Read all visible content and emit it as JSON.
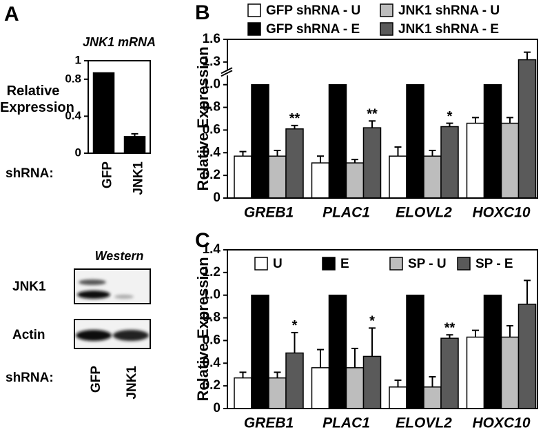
{
  "panels": [
    "A",
    "B",
    "C"
  ],
  "western": {
    "title": "Western",
    "rows": [
      "JNK1",
      "Actin"
    ],
    "x_label": "shRNA:",
    "lanes": [
      "GFP",
      "JNK1"
    ]
  },
  "chart_data": [
    {
      "type": "bar",
      "title": "JNK1 mRNA",
      "y_label": "Relative Expression",
      "x_label": "shRNA:",
      "categories": [
        "GFP",
        "JNK1"
      ],
      "values": [
        0.87,
        0.18
      ],
      "errors": [
        null,
        0.03
      ],
      "color": "#000000",
      "ylim": [
        0,
        1
      ],
      "yticks": [
        0,
        0.4,
        0.8,
        1
      ]
    },
    {
      "type": "grouped-bar",
      "y_label": "Relative Expression",
      "categories": [
        "GREB1",
        "PLAC1",
        "ELOVL2",
        "HOXC10"
      ],
      "series": [
        {
          "name": "GFP shRNA - U",
          "color": "#ffffff",
          "values": [
            0.37,
            0.31,
            0.37,
            0.66
          ],
          "errors": [
            0.04,
            0.06,
            0.08,
            0.05
          ],
          "significance": [
            null,
            null,
            null,
            null
          ]
        },
        {
          "name": "GFP shRNA - E",
          "color": "#000000",
          "values": [
            1.0,
            1.0,
            1.0,
            1.0
          ],
          "errors": [
            null,
            null,
            null,
            null
          ],
          "significance": [
            null,
            null,
            null,
            null
          ]
        },
        {
          "name": "JNK1 shRNA - U",
          "color": "#bdbdbd",
          "values": [
            0.37,
            0.31,
            0.37,
            0.66
          ],
          "errors": [
            0.05,
            0.03,
            0.05,
            0.05
          ],
          "significance": [
            null,
            null,
            null,
            null
          ]
        },
        {
          "name": "JNK1 shRNA - E",
          "color": "#5a5a5a",
          "values": [
            0.61,
            0.62,
            0.63,
            1.33
          ],
          "errors": [
            0.03,
            0.06,
            0.03,
            0.1
          ],
          "significance": [
            "**",
            "**",
            "*",
            null
          ]
        }
      ],
      "ylim": [
        0,
        1.6
      ],
      "yticks": [
        0,
        0.2,
        0.4,
        0.6,
        0.8,
        {
          "value": 1,
          "label": "1.0"
        },
        1.3,
        1.6
      ],
      "axis_break": true,
      "legend": "top"
    },
    {
      "type": "grouped-bar",
      "y_label": "Relative Expression",
      "categories": [
        "GREB1",
        "PLAC1",
        "ELOVL2",
        "HOXC10"
      ],
      "series": [
        {
          "name": "U",
          "color": "#ffffff",
          "values": [
            0.27,
            0.36,
            0.19,
            0.63
          ],
          "errors": [
            0.05,
            0.16,
            0.06,
            0.06
          ],
          "significance": [
            null,
            null,
            null,
            null
          ]
        },
        {
          "name": "E",
          "color": "#000000",
          "values": [
            1.0,
            1.0,
            1.0,
            1.0
          ],
          "errors": [
            null,
            null,
            null,
            null
          ],
          "significance": [
            null,
            null,
            null,
            null
          ]
        },
        {
          "name": "SP - U",
          "color": "#bdbdbd",
          "values": [
            0.27,
            0.36,
            0.19,
            0.63
          ],
          "errors": [
            0.05,
            0.17,
            0.09,
            0.1
          ],
          "significance": [
            null,
            null,
            null,
            null
          ]
        },
        {
          "name": "SP - E",
          "color": "#5a5a5a",
          "values": [
            0.49,
            0.46,
            0.62,
            0.92
          ],
          "errors": [
            0.18,
            0.25,
            0.03,
            0.21
          ],
          "significance": [
            "*",
            "*",
            "**",
            null
          ]
        }
      ],
      "ylim": [
        0,
        1.4
      ],
      "yticks": [
        0,
        0.2,
        0.4,
        0.6,
        0.8,
        {
          "value": 1,
          "label": "1.0"
        },
        1.2,
        1.4
      ],
      "axis_break": false,
      "legend": "inside-top"
    }
  ]
}
